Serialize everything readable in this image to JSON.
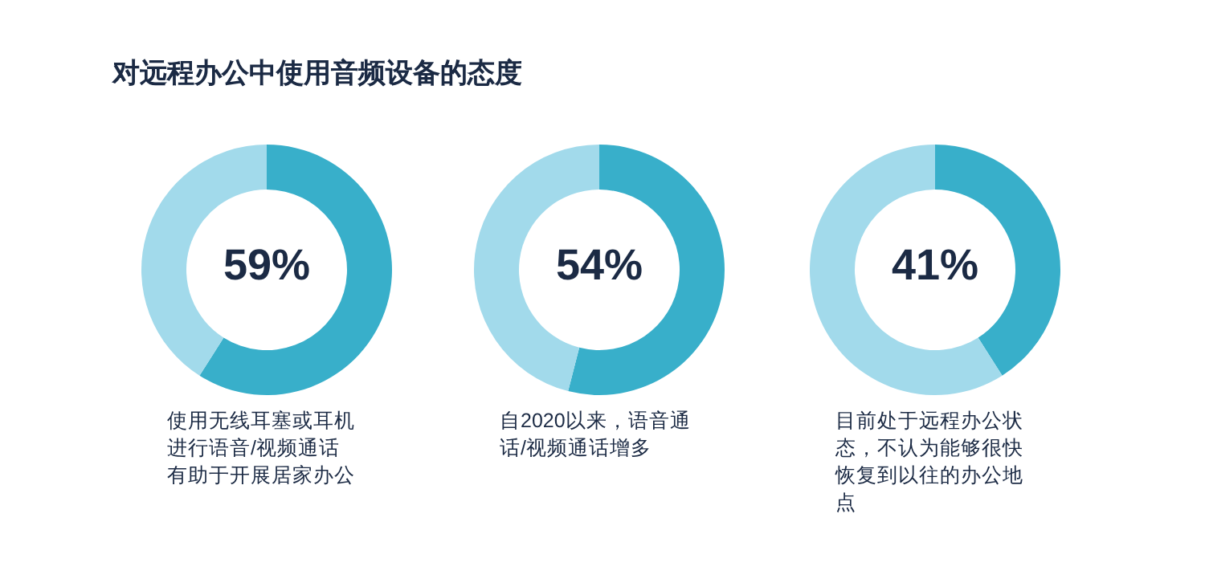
{
  "chart_data": [
    {
      "type": "donut",
      "title": "对远程办公中使用音频设备的态度",
      "categories": [
        null,
        null
      ],
      "values": [
        59,
        41
      ],
      "colors": [
        "#38afca",
        "#a2daeb"
      ],
      "annotations": [
        "59%",
        "使用无线耳塞或耳机进行语音/视频通话有助于开展居家办公"
      ]
    },
    {
      "type": "donut",
      "categories": [
        null,
        null
      ],
      "values": [
        54,
        46
      ],
      "colors": [
        "#38afca",
        "#a2daeb"
      ],
      "annotations": [
        "54%",
        "自2020以来，语音通话/视频通话增多"
      ]
    },
    {
      "type": "donut",
      "categories": [
        null,
        null
      ],
      "values": [
        41,
        59
      ],
      "colors": [
        "#38afca",
        "#a2daeb"
      ],
      "annotations": [
        "41%",
        "目前处于远程办公状态，不认为能够很快恢复到以往的办公地点"
      ]
    }
  ]
}
